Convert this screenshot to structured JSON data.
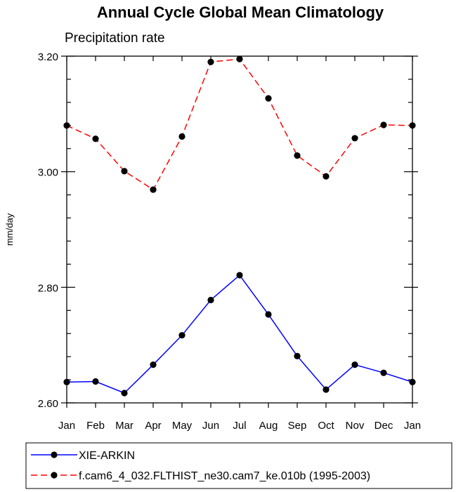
{
  "chart_data": {
    "type": "line",
    "title": "Annual Cycle Global Mean Climatology",
    "subtitle": "Precipitation rate",
    "xlabel": "",
    "ylabel": "mm/day",
    "ylim": [
      2.6,
      3.2
    ],
    "yticks": [
      2.6,
      2.8,
      3.0,
      3.2
    ],
    "ytick_labels": [
      "2.60",
      "2.80",
      "3.00",
      "3.20"
    ],
    "categories": [
      "Jan",
      "Feb",
      "Mar",
      "Apr",
      "May",
      "Jun",
      "Jul",
      "Aug",
      "Sep",
      "Oct",
      "Nov",
      "Dec",
      "Jan"
    ],
    "series": [
      {
        "name": "XIE-ARKIN",
        "color": "#0000ff",
        "dash": "solid",
        "values": [
          2.636,
          2.637,
          2.617,
          2.666,
          2.717,
          2.778,
          2.821,
          2.753,
          2.681,
          2.623,
          2.666,
          2.652,
          2.636
        ]
      },
      {
        "name": "f.cam6_4_032.FLTHIST_ne30.cam7_ke.010b (1995-2003)",
        "color": "#ff0000",
        "dash": "dashed",
        "values": [
          3.08,
          3.057,
          3.001,
          2.969,
          3.061,
          3.19,
          3.195,
          3.127,
          3.028,
          2.992,
          3.058,
          3.081,
          3.08
        ]
      }
    ],
    "legend_position": "bottom-left"
  }
}
